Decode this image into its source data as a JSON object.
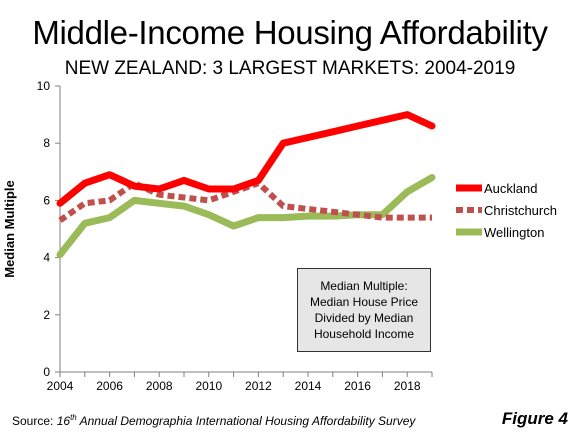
{
  "chart_data": {
    "type": "line",
    "title": "Middle-Income Housing Affordability",
    "subtitle": "NEW ZEALAND: 3 LARGEST MARKETS: 2004-2019",
    "xlabel": "",
    "ylabel": "Median Multiple",
    "x": [
      2004,
      2005,
      2006,
      2007,
      2008,
      2009,
      2010,
      2011,
      2012,
      2013,
      2014,
      2015,
      2016,
      2017,
      2018,
      2019
    ],
    "xlim": [
      2004,
      2019
    ],
    "xticks": [
      "2004",
      "2006",
      "2008",
      "2010",
      "2012",
      "2014",
      "2016",
      "2018"
    ],
    "ylim": [
      0,
      10
    ],
    "yticks": [
      "0",
      "2",
      "4",
      "6",
      "8",
      "10"
    ],
    "grid": false,
    "legend_position": "right",
    "series": [
      {
        "name": "Auckland",
        "color": "#ff0000",
        "style": "solid",
        "values": [
          5.9,
          6.6,
          6.9,
          6.5,
          6.4,
          6.7,
          6.4,
          6.4,
          6.7,
          8.0,
          8.2,
          8.4,
          8.6,
          8.8,
          9.0,
          8.6
        ]
      },
      {
        "name": "Christchurch",
        "color": "#c0504d",
        "style": "dashed",
        "values": [
          5.3,
          5.9,
          6.0,
          6.6,
          6.2,
          6.1,
          6.0,
          6.3,
          6.6,
          5.8,
          5.7,
          5.6,
          5.5,
          5.4,
          5.4,
          5.4
        ]
      },
      {
        "name": "Wellington",
        "color": "#9bbb59",
        "style": "solid",
        "values": [
          4.1,
          5.2,
          5.4,
          6.0,
          5.9,
          5.8,
          5.5,
          5.1,
          5.4,
          5.4,
          5.45,
          5.45,
          5.5,
          5.5,
          6.3,
          6.8
        ]
      }
    ],
    "annotation": [
      "Median Multiple:",
      "Median House Price",
      "Divided by Median",
      "Household Income"
    ]
  },
  "footer": {
    "source_prefix": "Source: ",
    "source_sup_base": "16",
    "source_sup": "th",
    "source_title": " Annual Demographia International Housing Affordability Survey",
    "figure_label": "Figure 4"
  }
}
